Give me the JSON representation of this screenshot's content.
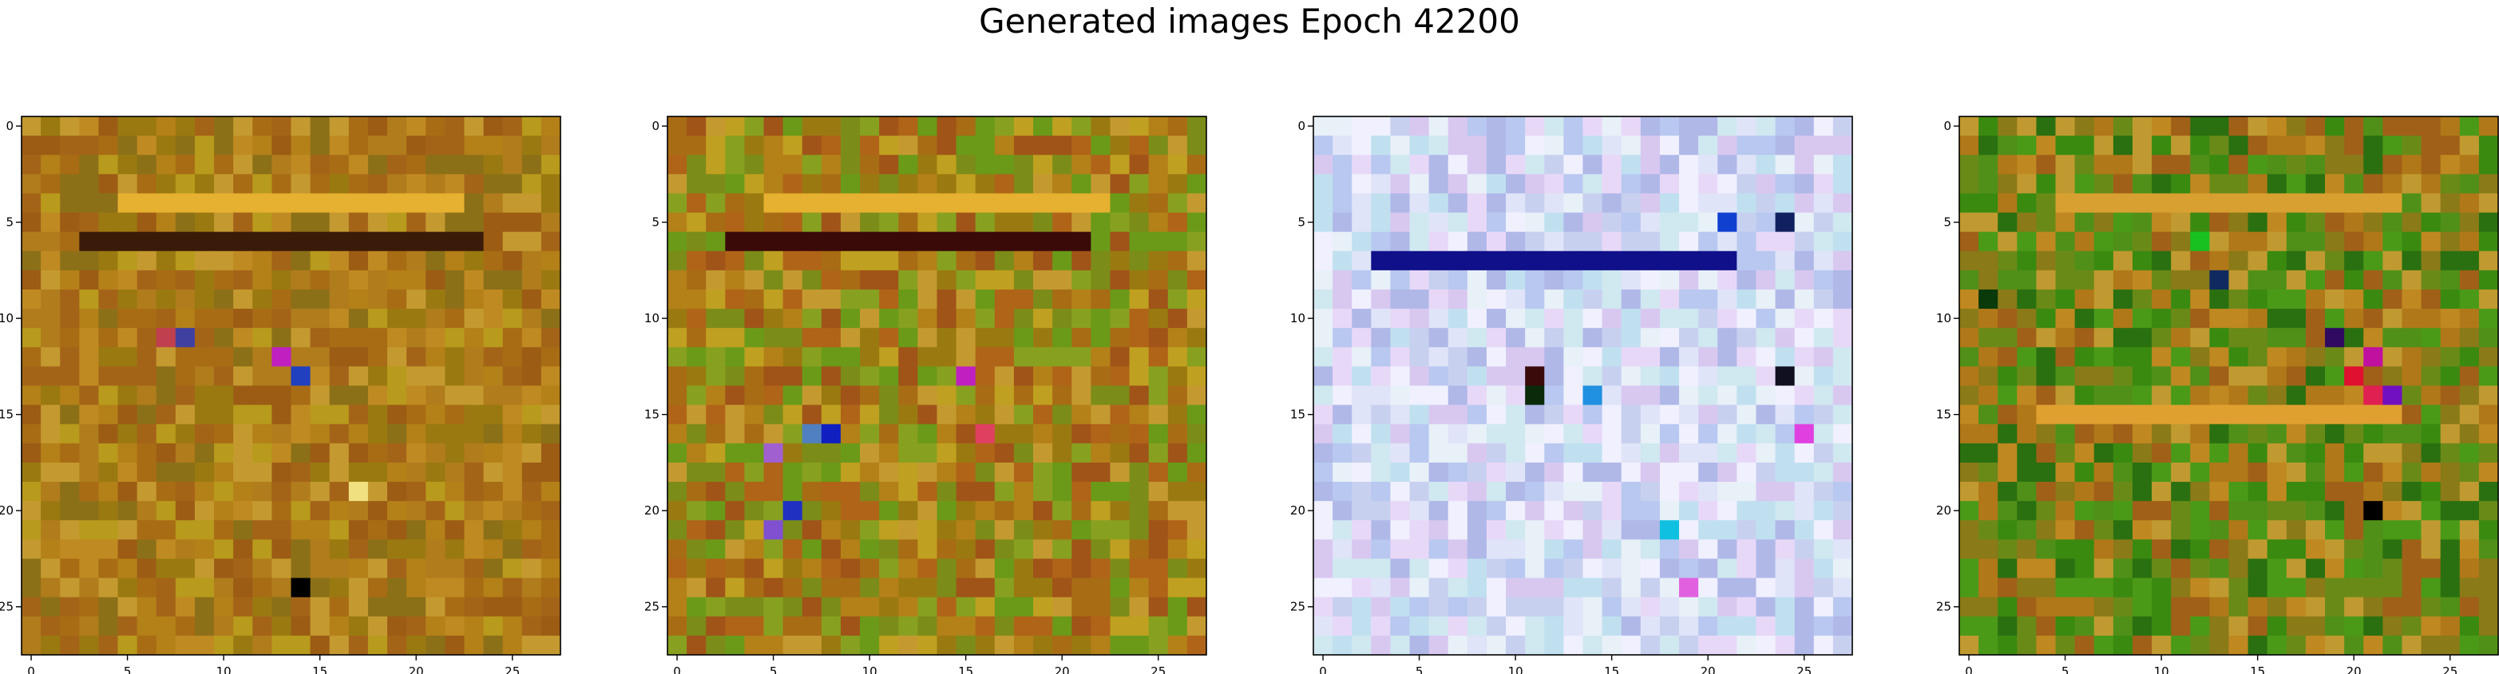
{
  "figure": {
    "title": "Generated images Epoch 42200"
  },
  "chart_data": [
    {
      "type": "heatmap",
      "title": "",
      "xlabel": "",
      "ylabel": "",
      "grid": false,
      "xlim": [
        -0.5,
        27.5
      ],
      "ylim": [
        27.5,
        -0.5
      ],
      "xticks": [
        0,
        5,
        10,
        15,
        20,
        25
      ],
      "yticks": [
        0,
        5,
        10,
        15,
        20,
        25
      ],
      "rows": 28,
      "cols": 28,
      "palette": {
        "base": [
          "#a86c14",
          "#b48018",
          "#9a7a10",
          "#c08a22",
          "#a46418",
          "#b89a1c",
          "#8c7018",
          "#c49a30",
          "#9c5c14",
          "#b07c1c"
        ],
        "accent": [
          {
            "r": 4,
            "c": 5,
            "to_c": 22,
            "color": "#e6b030"
          },
          {
            "r": 6,
            "c": 3,
            "to_c": 23,
            "color": "#3a1a08"
          },
          {
            "r": 12,
            "c": 13,
            "color": "#c020c0"
          },
          {
            "r": 13,
            "c": 14,
            "color": "#2040c0"
          },
          {
            "r": 11,
            "c": 7,
            "color": "#c04050"
          },
          {
            "r": 11,
            "c": 8,
            "color": "#4040a0"
          },
          {
            "r": 19,
            "c": 17,
            "color": "#f0e080"
          },
          {
            "r": 24,
            "c": 14,
            "color": "#000000"
          }
        ]
      }
    },
    {
      "type": "heatmap",
      "title": "",
      "xlabel": "",
      "ylabel": "",
      "grid": false,
      "xlim": [
        -0.5,
        27.5
      ],
      "ylim": [
        27.5,
        -0.5
      ],
      "xticks": [
        0,
        5,
        10,
        15,
        20,
        25
      ],
      "yticks": [
        0,
        5,
        10,
        15,
        20,
        25
      ],
      "rows": 28,
      "cols": 28,
      "palette": {
        "base": [
          "#a86c14",
          "#b48018",
          "#9a7a10",
          "#6a9a18",
          "#b06418",
          "#c0a020",
          "#7c8c18",
          "#c49a30",
          "#a05418",
          "#88a020"
        ],
        "accent": [
          {
            "r": 4,
            "c": 5,
            "to_c": 22,
            "color": "#e6b030"
          },
          {
            "r": 6,
            "c": 3,
            "to_c": 21,
            "color": "#3a0a08"
          },
          {
            "r": 16,
            "c": 8,
            "color": "#1020c0"
          },
          {
            "r": 16,
            "c": 7,
            "color": "#5080c0"
          },
          {
            "r": 13,
            "c": 15,
            "color": "#c020c0"
          },
          {
            "r": 17,
            "c": 5,
            "color": "#a060d0"
          },
          {
            "r": 20,
            "c": 6,
            "color": "#2030c0"
          },
          {
            "r": 21,
            "c": 5,
            "color": "#8050d0"
          },
          {
            "r": 16,
            "c": 16,
            "color": "#e04060"
          }
        ]
      }
    },
    {
      "type": "heatmap",
      "title": "",
      "xlabel": "",
      "ylabel": "",
      "grid": false,
      "xlim": [
        -0.5,
        27.5
      ],
      "ylim": [
        27.5,
        -0.5
      ],
      "xticks": [
        0,
        5,
        10,
        15,
        20,
        25
      ],
      "yticks": [
        0,
        5,
        10,
        15,
        20,
        25
      ],
      "rows": 28,
      "cols": 28,
      "palette": {
        "base": [
          "#c8d0f0",
          "#e0e4f8",
          "#b8c8f0",
          "#d8c8f0",
          "#e8f0f8",
          "#c0e0f0",
          "#f0f0ff",
          "#b0b8e8",
          "#d0e8f0",
          "#e8d8f8"
        ],
        "accent": [
          {
            "r": 7,
            "c": 3,
            "to_c": 21,
            "color": "#10108a"
          },
          {
            "r": 5,
            "c": 21,
            "color": "#1040d0"
          },
          {
            "r": 5,
            "c": 24,
            "color": "#102060"
          },
          {
            "r": 14,
            "c": 11,
            "color": "#0a2a0a"
          },
          {
            "r": 13,
            "c": 11,
            "color": "#3a0a0a"
          },
          {
            "r": 13,
            "c": 24,
            "color": "#101020"
          },
          {
            "r": 21,
            "c": 18,
            "color": "#10c0e0"
          },
          {
            "r": 14,
            "c": 14,
            "color": "#2090e0"
          },
          {
            "r": 16,
            "c": 25,
            "color": "#e040e0"
          },
          {
            "r": 24,
            "c": 19,
            "color": "#e060e0"
          }
        ]
      }
    },
    {
      "type": "heatmap",
      "title": "",
      "xlabel": "",
      "ylabel": "",
      "grid": false,
      "xlim": [
        -0.5,
        27.5
      ],
      "ylim": [
        27.5,
        -0.5
      ],
      "xticks": [
        0,
        5,
        10,
        15,
        20,
        25
      ],
      "yticks": [
        0,
        5,
        10,
        15,
        20,
        25
      ],
      "rows": 28,
      "cols": 28,
      "palette": {
        "base": [
          "#3a8a10",
          "#4a9a18",
          "#2a7010",
          "#6a8a18",
          "#b07818",
          "#c08820",
          "#8a7a18",
          "#509018",
          "#c09a30",
          "#a06018"
        ],
        "accent": [
          {
            "r": 4,
            "c": 5,
            "to_c": 22,
            "color": "#d8a030"
          },
          {
            "r": 15,
            "c": 4,
            "to_c": 22,
            "color": "#e0a030"
          },
          {
            "r": 13,
            "c": 20,
            "color": "#e01030"
          },
          {
            "r": 14,
            "c": 21,
            "color": "#e02050"
          },
          {
            "r": 12,
            "c": 21,
            "color": "#c010a0"
          },
          {
            "r": 14,
            "c": 22,
            "color": "#7010c0"
          },
          {
            "r": 11,
            "c": 19,
            "color": "#300a60"
          },
          {
            "r": 20,
            "c": 21,
            "color": "#000000"
          },
          {
            "r": 9,
            "c": 1,
            "color": "#0a3a0a"
          },
          {
            "r": 8,
            "c": 13,
            "color": "#102a60"
          },
          {
            "r": 6,
            "c": 12,
            "color": "#18c020"
          }
        ]
      }
    }
  ]
}
